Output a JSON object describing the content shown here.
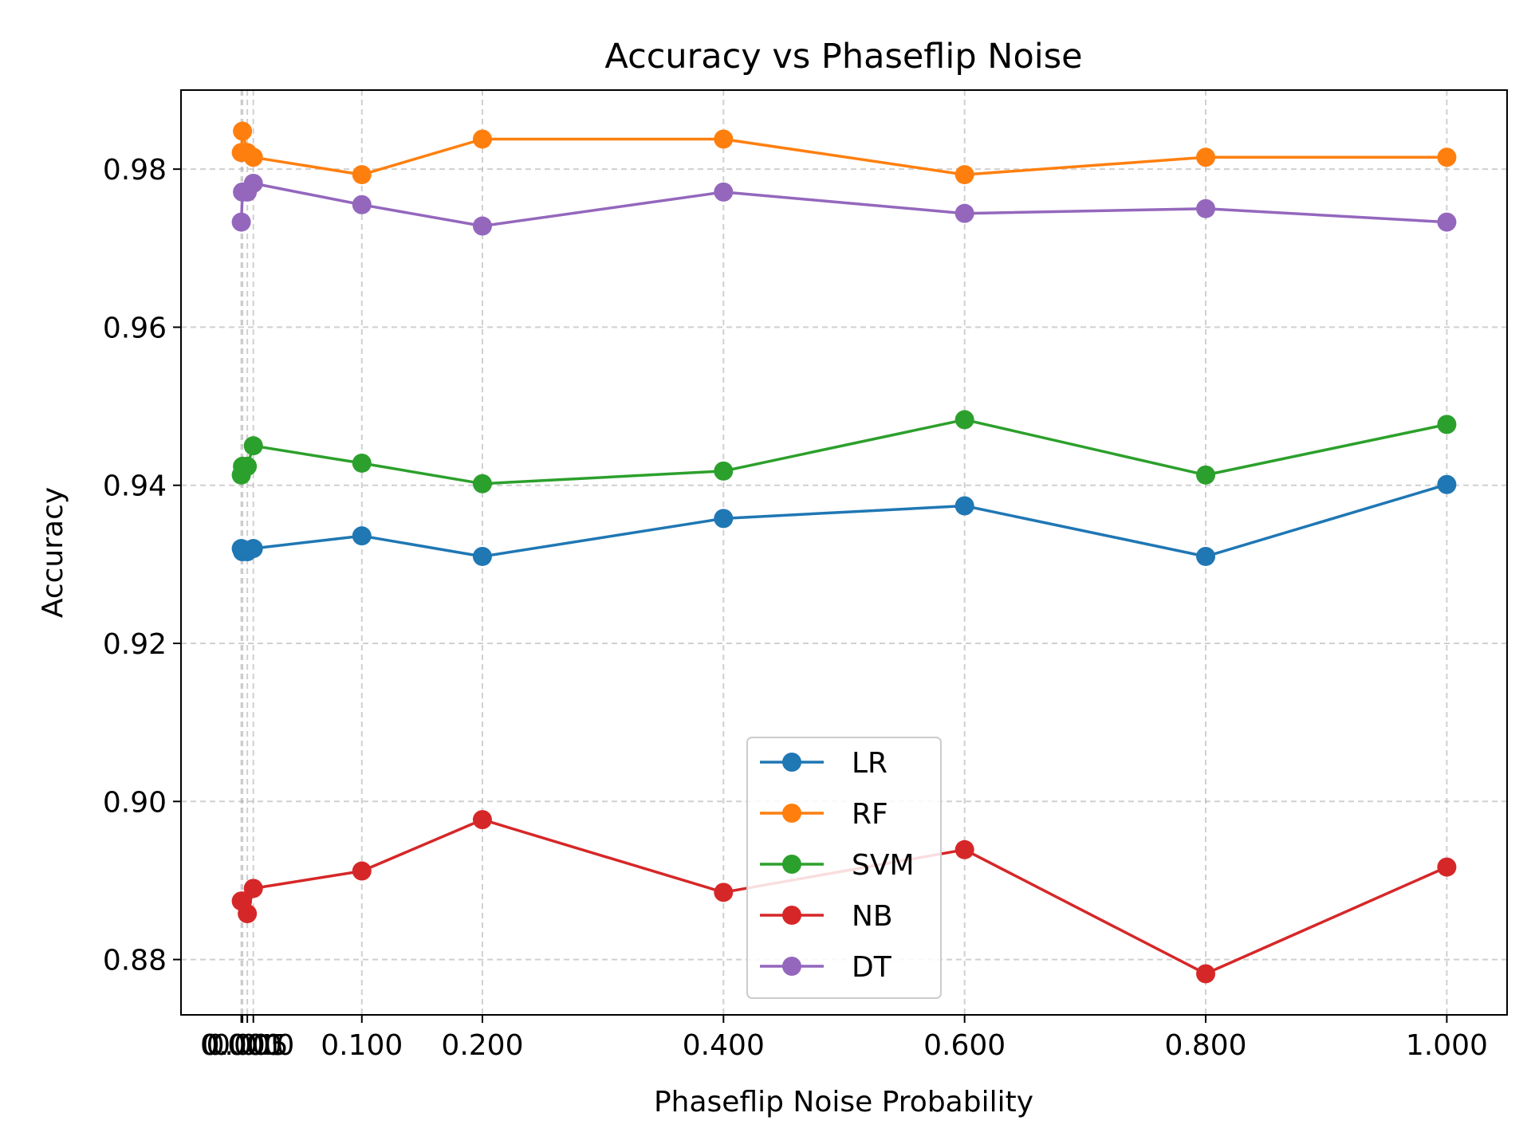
{
  "chart_data": {
    "type": "line",
    "title": "Accuracy vs Phaseflip Noise",
    "xlabel": "Phaseflip Noise Probability",
    "ylabel": "Accuracy",
    "xlim": [
      -0.05,
      1.05
    ],
    "ylim": [
      0.873,
      0.99
    ],
    "grid": true,
    "legend_position": "lower-center",
    "x": [
      0.0,
      0.001,
      0.005,
      0.01,
      0.1,
      0.2,
      0.4,
      0.6,
      0.8,
      1.0
    ],
    "x_ticks": [
      0.0,
      0.001,
      0.005,
      0.01,
      0.1,
      0.2,
      0.4,
      0.6,
      0.8,
      1.0
    ],
    "x_tick_labels": [
      "0.000",
      "0.001",
      "0.005",
      "0.010",
      "0.100",
      "0.200",
      "0.400",
      "0.600",
      "0.800",
      "1.000"
    ],
    "y_ticks": [
      0.88,
      0.9,
      0.92,
      0.94,
      0.96,
      0.98
    ],
    "y_tick_labels": [
      "0.88",
      "0.90",
      "0.92",
      "0.94",
      "0.96",
      "0.98"
    ],
    "series": [
      {
        "name": "LR",
        "color": "#1f77b4",
        "values": [
          0.932,
          0.9316,
          0.9316,
          0.932,
          0.9336,
          0.931,
          0.9358,
          0.9374,
          0.931,
          0.9401
        ]
      },
      {
        "name": "RF",
        "color": "#ff7f0e",
        "values": [
          0.9821,
          0.9848,
          0.9821,
          0.9815,
          0.9793,
          0.9838,
          0.9838,
          0.9793,
          0.9815,
          0.9815
        ]
      },
      {
        "name": "SVM",
        "color": "#2ca02c",
        "values": [
          0.9413,
          0.9424,
          0.9424,
          0.945,
          0.9428,
          0.9402,
          0.9418,
          0.9483,
          0.9413,
          0.9477
        ]
      },
      {
        "name": "NB",
        "color": "#d62728",
        "values": [
          0.8874,
          0.8874,
          0.8858,
          0.889,
          0.8912,
          0.8977,
          0.8885,
          0.8939,
          0.8782,
          0.8917
        ]
      },
      {
        "name": "DT",
        "color": "#9467bd",
        "values": [
          0.9733,
          0.9771,
          0.9771,
          0.9782,
          0.9755,
          0.9728,
          0.9771,
          0.9744,
          0.975,
          0.9733
        ]
      }
    ]
  }
}
